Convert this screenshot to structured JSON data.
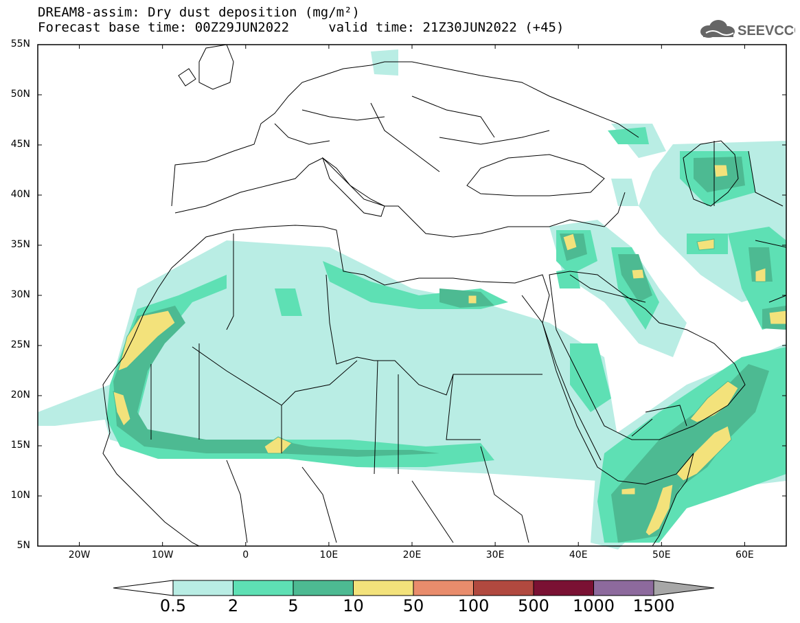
{
  "title": {
    "line1": "DREAM8-assim: Dry dust deposition (mg/m²)",
    "line2": "Forecast base time: 00Z29JUN2022     valid time: 21Z30JUN2022 (+45)"
  },
  "logo": {
    "text": "SEEVCCC",
    "icon": "cloud-icon"
  },
  "map": {
    "lat_labels": [
      "55N",
      "50N",
      "45N",
      "40N",
      "35N",
      "30N",
      "25N",
      "20N",
      "15N",
      "10N",
      "5N"
    ],
    "lat_values": [
      55,
      50,
      45,
      40,
      35,
      30,
      25,
      20,
      15,
      10,
      5
    ],
    "lon_labels": [
      "20W",
      "10W",
      "0",
      "10E",
      "20E",
      "30E",
      "40E",
      "50E",
      "60E"
    ],
    "lon_values": [
      -20,
      -10,
      0,
      10,
      20,
      30,
      40,
      50,
      60
    ],
    "lon_range": [
      -25,
      65
    ],
    "lat_range": [
      5,
      55
    ]
  },
  "legend": {
    "labels": [
      "0.5",
      "2",
      "5",
      "10",
      "50",
      "100",
      "500",
      "1000",
      "1500"
    ],
    "colors": [
      "#b9ede4",
      "#5ee0b4",
      "#4dba92",
      "#f3e27b",
      "#e98c6c",
      "#b1493f",
      "#7a1133",
      "#8d6a9d",
      "#a7a7a7"
    ]
  }
}
